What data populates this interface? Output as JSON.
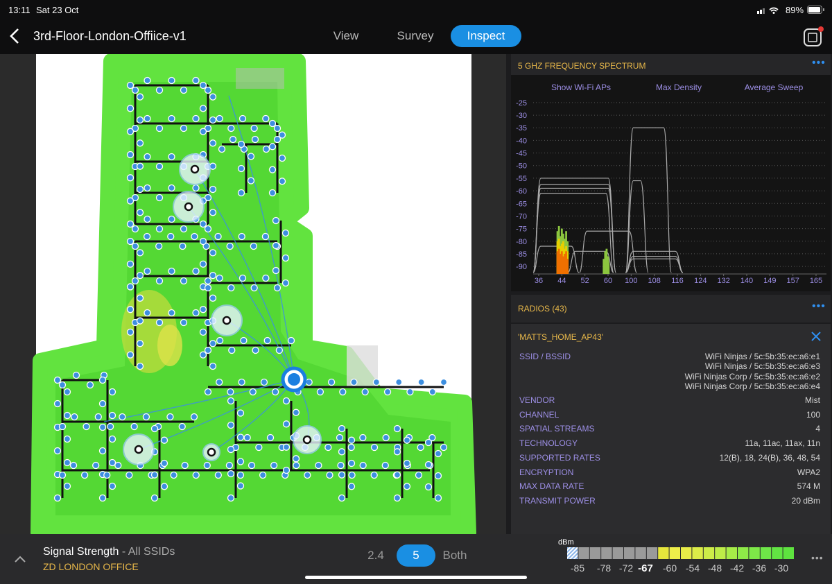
{
  "status": {
    "time": "13:11",
    "date": "Sat 23 Oct",
    "battery": "89%"
  },
  "nav": {
    "title": "3rd-Floor-London-Offiice-v1",
    "tabs": [
      "View",
      "Survey",
      "Inspect"
    ],
    "active_tab": 2
  },
  "chart_data": {
    "type": "spectrum",
    "title": "5 GHZ FREQUENCY SPECTRUM",
    "controls": [
      "Show Wi-Fi APs",
      "Max Density",
      "Average Sweep"
    ],
    "ylim": [
      -22,
      -93
    ],
    "yticks": [
      -25,
      -30,
      -35,
      -40,
      -45,
      -50,
      -55,
      -60,
      -65,
      -70,
      -75,
      -80,
      -85,
      -90
    ],
    "xticks": [
      36,
      44,
      52,
      60,
      100,
      108,
      116,
      124,
      132,
      140,
      149,
      157,
      165
    ],
    "grid": true,
    "envelope_color": "#a9a9a9",
    "envelopes": [
      {
        "x": [
          36,
          64
        ],
        "level": -55
      },
      {
        "x": [
          36,
          64
        ],
        "level": -57.5
      },
      {
        "x": [
          36,
          64
        ],
        "level": -59
      },
      {
        "x": [
          36,
          60
        ],
        "level": -61
      },
      {
        "x": [
          52,
          100
        ],
        "level": -76
      },
      {
        "x": [
          36,
          48
        ],
        "level": -82
      },
      {
        "x": [
          48,
          60
        ],
        "level": -84
      },
      {
        "x": [
          100,
          112
        ],
        "level": -35
      },
      {
        "x": [
          100,
          104
        ],
        "level": -56
      },
      {
        "x": [
          100,
          116
        ],
        "level": -84
      },
      {
        "x": [
          100,
          116
        ],
        "level": -86
      },
      {
        "x": [
          100,
          116
        ],
        "level": -87
      }
    ],
    "activity": [
      {
        "color": "#8cc63f",
        "x": [
          42.5,
          43,
          43.5,
          44,
          44.5,
          45,
          45.5,
          46,
          58.5,
          59,
          59.5,
          60,
          60.5,
          61
        ],
        "values": [
          -76,
          -74,
          -78,
          -75,
          -77,
          -79,
          -76,
          -80,
          -87,
          -84,
          -83,
          -86,
          -88,
          -89
        ]
      },
      {
        "color": "#e8d000",
        "x": [
          42.5,
          43,
          43.5,
          44,
          44.5,
          45,
          45.5,
          46
        ],
        "values": [
          -80,
          -79,
          -82,
          -81,
          -80,
          -83,
          -82,
          -84
        ]
      },
      {
        "color": "#f07000",
        "x": [
          42.5,
          43,
          43.5,
          44,
          44.5,
          45,
          45.5,
          46
        ],
        "values": [
          -84,
          -83,
          -85,
          -84,
          -86,
          -85,
          -84,
          -87
        ]
      }
    ]
  },
  "radios": {
    "title": "RADIOS (43)",
    "name": "'MATTS_HOME_AP43'",
    "ssid": {
      "label": "SSID / BSSID",
      "values": [
        "WiFi Ninjas / 5c:5b:35:ec:a6:e1",
        "WiFi Ninjas / 5c:5b:35:ec:a6:e3",
        "WiFi Ninjas Corp / 5c:5b:35:ec:a6:e2",
        "WiFi Ninjas Corp / 5c:5b:35:ec:a6:e4"
      ]
    },
    "rows": [
      {
        "label": "VENDOR",
        "value": "Mist"
      },
      {
        "label": "CHANNEL",
        "value": "100"
      },
      {
        "label": "SPATIAL STREAMS",
        "value": "4"
      },
      {
        "label": "TECHNOLOGY",
        "value": "11a, 11ac, 11ax, 11n"
      },
      {
        "label": "SUPPORTED RATES",
        "value": "12(B), 18, 24(B), 36, 48, 54"
      },
      {
        "label": "ENCRYPTION",
        "value": "WPA2"
      },
      {
        "label": "MAX DATA RATE",
        "value": "574 M"
      },
      {
        "label": "TRANSMIT POWER",
        "value": "20 dBm"
      }
    ]
  },
  "footer": {
    "metric": "Signal Strength",
    "scope": "- All SSIDs",
    "site": "ZD LONDON OFFICE",
    "bands": [
      "2.4",
      "5",
      "Both"
    ],
    "active_band": 1,
    "unit": "dBm",
    "scale": [
      -85,
      -78,
      -72,
      -67,
      -60,
      -54,
      -48,
      -42,
      -36,
      -30
    ],
    "scale_selected": 3
  }
}
